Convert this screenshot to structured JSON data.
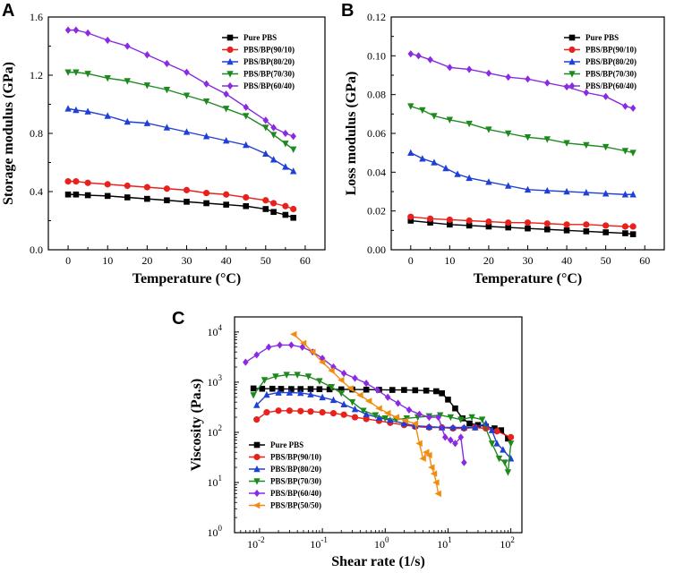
{
  "chart_data": [
    {
      "panel": "A",
      "type": "line",
      "title": "",
      "xlabel": "Temperature (°C)",
      "ylabel": "Storage modulus (GPa)",
      "xlim": [
        -5,
        65
      ],
      "ylim": [
        0.0,
        1.6
      ],
      "xticks": [
        0,
        10,
        20,
        30,
        40,
        50,
        60
      ],
      "yticks": [
        0.0,
        0.4,
        0.8,
        1.2,
        1.6
      ],
      "ytick_labels": [
        "0.0",
        "0.4",
        "0.8",
        "1.2",
        "1.6"
      ],
      "legend_position": "top-right",
      "series": [
        {
          "name": "Pure PBS",
          "color": "#000000",
          "marker": "square",
          "x": [
            0,
            2,
            5,
            10,
            15,
            20,
            25,
            30,
            35,
            40,
            45,
            50,
            52,
            55,
            57
          ],
          "values": [
            0.38,
            0.38,
            0.375,
            0.37,
            0.36,
            0.35,
            0.34,
            0.33,
            0.32,
            0.31,
            0.3,
            0.28,
            0.26,
            0.24,
            0.22
          ]
        },
        {
          "name": "PBS/BP(90/10)",
          "color": "#e8211d",
          "marker": "circle",
          "x": [
            0,
            2,
            5,
            10,
            15,
            20,
            25,
            30,
            35,
            40,
            45,
            50,
            52,
            55,
            57
          ],
          "values": [
            0.47,
            0.47,
            0.46,
            0.45,
            0.44,
            0.43,
            0.42,
            0.41,
            0.39,
            0.38,
            0.36,
            0.34,
            0.32,
            0.3,
            0.28
          ]
        },
        {
          "name": "PBS/BP(80/20)",
          "color": "#1f3fd6",
          "marker": "triangle-up",
          "x": [
            0,
            2,
            5,
            10,
            15,
            20,
            25,
            30,
            35,
            40,
            45,
            50,
            52,
            55,
            57
          ],
          "values": [
            0.97,
            0.96,
            0.95,
            0.92,
            0.88,
            0.87,
            0.84,
            0.81,
            0.78,
            0.75,
            0.72,
            0.66,
            0.62,
            0.57,
            0.54
          ]
        },
        {
          "name": "PBS/BP(70/30)",
          "color": "#1e8a1e",
          "marker": "triangle-down",
          "x": [
            0,
            2,
            5,
            10,
            15,
            20,
            25,
            30,
            35,
            40,
            45,
            50,
            52,
            55,
            57
          ],
          "values": [
            1.22,
            1.22,
            1.21,
            1.18,
            1.16,
            1.13,
            1.1,
            1.06,
            1.02,
            0.97,
            0.92,
            0.84,
            0.79,
            0.73,
            0.69
          ]
        },
        {
          "name": "PBS/BP(60/40)",
          "color": "#8a2be2",
          "marker": "diamond",
          "x": [
            0,
            2,
            5,
            10,
            15,
            20,
            25,
            30,
            35,
            40,
            45,
            50,
            52,
            55,
            57
          ],
          "values": [
            1.51,
            1.51,
            1.49,
            1.44,
            1.4,
            1.34,
            1.28,
            1.22,
            1.14,
            1.07,
            0.98,
            0.89,
            0.84,
            0.8,
            0.78
          ]
        }
      ]
    },
    {
      "panel": "B",
      "type": "line",
      "title": "",
      "xlabel": "Temperature (°C)",
      "ylabel": "Loss modulus (GPa)",
      "xlim": [
        -5,
        65
      ],
      "ylim": [
        0.0,
        0.12
      ],
      "xticks": [
        0,
        10,
        20,
        30,
        40,
        50,
        60
      ],
      "yticks": [
        0.0,
        0.02,
        0.04,
        0.06,
        0.08,
        0.1,
        0.12
      ],
      "ytick_labels": [
        "0.00",
        "0.02",
        "0.04",
        "0.06",
        "0.08",
        "0.10",
        "0.12"
      ],
      "legend_position": "top-right",
      "series": [
        {
          "name": "Pure PBS",
          "color": "#000000",
          "marker": "square",
          "x": [
            0,
            5,
            10,
            15,
            20,
            25,
            30,
            35,
            40,
            45,
            50,
            55,
            57
          ],
          "values": [
            0.015,
            0.014,
            0.013,
            0.0125,
            0.012,
            0.0115,
            0.011,
            0.0105,
            0.01,
            0.0095,
            0.009,
            0.0085,
            0.008
          ]
        },
        {
          "name": "PBS/BP(90/10)",
          "color": "#e8211d",
          "marker": "circle",
          "x": [
            0,
            5,
            10,
            15,
            20,
            25,
            30,
            35,
            40,
            45,
            50,
            55,
            57
          ],
          "values": [
            0.017,
            0.016,
            0.0155,
            0.015,
            0.0145,
            0.014,
            0.014,
            0.0135,
            0.013,
            0.013,
            0.0125,
            0.012,
            0.012
          ]
        },
        {
          "name": "PBS/BP(80/20)",
          "color": "#1f3fd6",
          "marker": "triangle-up",
          "x": [
            0,
            3,
            6,
            9,
            12,
            15,
            20,
            25,
            30,
            35,
            40,
            45,
            50,
            55,
            57
          ],
          "values": [
            0.05,
            0.047,
            0.045,
            0.042,
            0.039,
            0.037,
            0.035,
            0.033,
            0.031,
            0.0305,
            0.03,
            0.0295,
            0.029,
            0.0285,
            0.0285
          ]
        },
        {
          "name": "PBS/BP(70/30)",
          "color": "#1e8a1e",
          "marker": "triangle-down",
          "x": [
            0,
            3,
            6,
            10,
            15,
            20,
            25,
            30,
            35,
            40,
            45,
            50,
            55,
            57
          ],
          "values": [
            0.074,
            0.072,
            0.069,
            0.067,
            0.065,
            0.062,
            0.06,
            0.058,
            0.057,
            0.055,
            0.054,
            0.053,
            0.051,
            0.05
          ]
        },
        {
          "name": "PBS/BP(60/40)",
          "color": "#8a2be2",
          "marker": "diamond",
          "x": [
            0,
            2,
            5,
            10,
            15,
            20,
            25,
            30,
            35,
            40,
            45,
            50,
            55,
            57
          ],
          "values": [
            0.101,
            0.1,
            0.098,
            0.094,
            0.093,
            0.091,
            0.089,
            0.088,
            0.086,
            0.084,
            0.081,
            0.079,
            0.074,
            0.073
          ]
        }
      ]
    },
    {
      "panel": "C",
      "type": "line",
      "title": "",
      "xlabel": "Shear rate (1/s)",
      "ylabel": "Viscosity (Pa.s)",
      "xscale": "log",
      "yscale": "log",
      "xlim": [
        0.004,
        150
      ],
      "ylim": [
        1,
        20000
      ],
      "xticks": [
        0.01,
        0.1,
        1,
        10,
        100
      ],
      "xtick_labels": [
        [
          "10",
          "-2"
        ],
        [
          "10",
          "-1"
        ],
        [
          "10",
          "0"
        ],
        [
          "10",
          "1"
        ],
        [
          "10",
          "2"
        ]
      ],
      "yticks": [
        1,
        10,
        100,
        1000,
        10000
      ],
      "ytick_labels": [
        [
          "10",
          "0"
        ],
        [
          "10",
          "1"
        ],
        [
          "10",
          "2"
        ],
        [
          "10",
          "3"
        ],
        [
          "10",
          "4"
        ]
      ],
      "legend_position": "bottom-left",
      "series": [
        {
          "name": "Pure PBS",
          "color": "#000000",
          "marker": "square",
          "x": [
            0.008,
            0.011,
            0.016,
            0.022,
            0.032,
            0.045,
            0.065,
            0.09,
            0.13,
            0.2,
            0.3,
            0.5,
            0.8,
            1.3,
            2,
            3,
            4.5,
            6.5,
            8,
            10,
            13,
            17,
            22,
            30,
            40,
            55,
            70,
            90
          ],
          "values": [
            750,
            740,
            740,
            735,
            730,
            730,
            730,
            725,
            720,
            720,
            715,
            710,
            705,
            700,
            700,
            690,
            680,
            660,
            600,
            450,
            300,
            190,
            150,
            140,
            130,
            120,
            110,
            75
          ]
        },
        {
          "name": "PBS/BP(90/10)",
          "color": "#e8211d",
          "marker": "circle",
          "x": [
            0.009,
            0.013,
            0.02,
            0.03,
            0.045,
            0.065,
            0.1,
            0.15,
            0.22,
            0.33,
            0.5,
            0.8,
            1.2,
            2,
            3,
            5,
            8,
            12,
            18,
            27,
            40,
            60,
            100
          ],
          "values": [
            180,
            250,
            270,
            270,
            265,
            260,
            250,
            240,
            225,
            200,
            185,
            170,
            155,
            140,
            130,
            125,
            125,
            120,
            120,
            125,
            120,
            105,
            80
          ]
        },
        {
          "name": "PBS/BP(80/20)",
          "color": "#1f3fd6",
          "marker": "triangle-up",
          "x": [
            0.009,
            0.013,
            0.02,
            0.03,
            0.045,
            0.065,
            0.1,
            0.15,
            0.22,
            0.33,
            0.5,
            0.8,
            1.2,
            2,
            3,
            5,
            8,
            12,
            18,
            27,
            40,
            50,
            60,
            75,
            100
          ],
          "values": [
            350,
            560,
            620,
            620,
            610,
            570,
            500,
            440,
            360,
            290,
            230,
            195,
            175,
            150,
            135,
            130,
            125,
            125,
            125,
            125,
            150,
            110,
            60,
            45,
            30
          ]
        },
        {
          "name": "PBS/BP(70/30)",
          "color": "#1e8a1e",
          "marker": "triangle-down",
          "x": [
            0.008,
            0.012,
            0.018,
            0.027,
            0.04,
            0.06,
            0.09,
            0.14,
            0.2,
            0.3,
            0.45,
            0.7,
            1.0,
            1.5,
            2.2,
            3.3,
            5,
            7.5,
            11,
            16,
            24,
            35,
            50,
            65,
            80,
            90,
            100
          ],
          "values": [
            550,
            1100,
            1300,
            1400,
            1400,
            1300,
            1050,
            800,
            600,
            400,
            270,
            220,
            190,
            180,
            190,
            200,
            210,
            220,
            200,
            180,
            200,
            180,
            60,
            30,
            25,
            16,
            60
          ]
        },
        {
          "name": "PBS/BP(60/40)",
          "color": "#8a2be2",
          "marker": "diamond",
          "x": [
            0.006,
            0.009,
            0.014,
            0.021,
            0.032,
            0.048,
            0.07,
            0.1,
            0.15,
            0.22,
            0.33,
            0.5,
            0.75,
            1.1,
            1.6,
            2.4,
            3.5,
            5,
            7,
            9,
            11,
            13,
            16,
            18
          ],
          "values": [
            2500,
            3500,
            5000,
            5500,
            5500,
            5000,
            4000,
            3000,
            2000,
            1500,
            1200,
            950,
            700,
            500,
            380,
            280,
            230,
            200,
            200,
            80,
            70,
            60,
            80,
            25
          ]
        },
        {
          "name": "PBS/BP(50/50)",
          "color": "#f28c0f",
          "marker": "left-triangle",
          "x": [
            0.035,
            0.05,
            0.07,
            0.1,
            0.14,
            0.2,
            0.28,
            0.4,
            0.55,
            0.8,
            1.1,
            1.5,
            2.1,
            3,
            3.5,
            4,
            4.5,
            5,
            5.5,
            6,
            6.5,
            7
          ],
          "values": [
            9000,
            6000,
            4000,
            2500,
            1700,
            1100,
            750,
            550,
            420,
            300,
            240,
            200,
            170,
            150,
            60,
            30,
            40,
            35,
            20,
            15,
            10,
            6
          ]
        }
      ]
    }
  ]
}
